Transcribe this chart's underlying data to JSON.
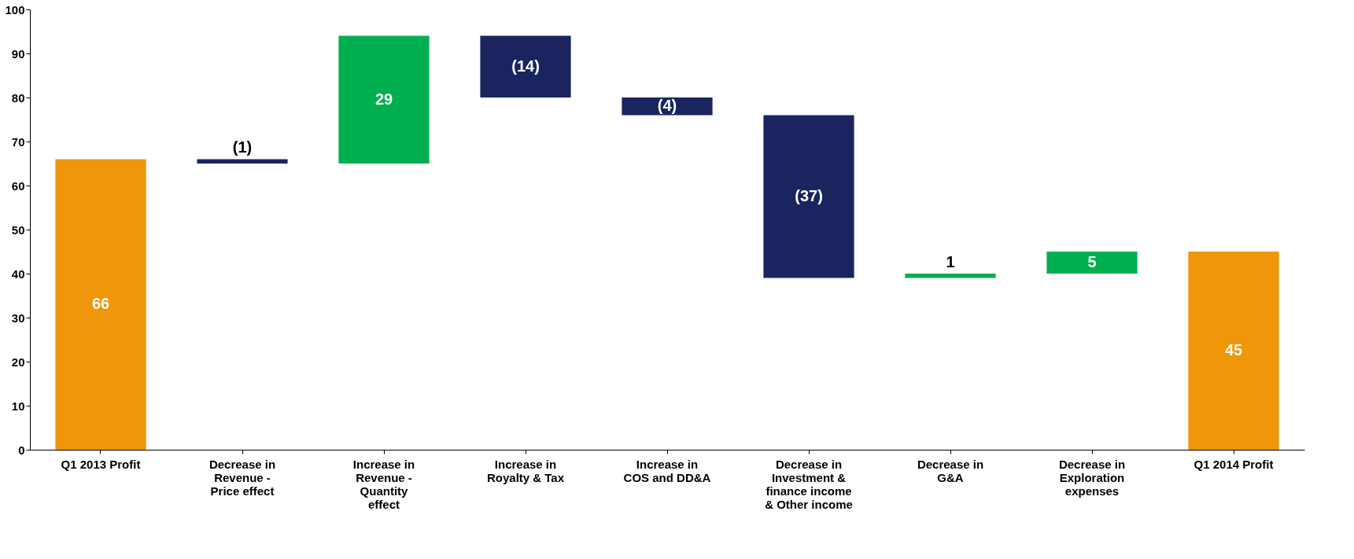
{
  "chart_data": {
    "type": "bar",
    "categories": [
      "Q1 2013 Profit",
      "Decrease in Revenue - Price effect",
      "Increase in Revenue - Quantity effect",
      "Increase in Royalty & Tax",
      "Increase in COS and DD&A",
      "Decrease in Investment & finance income & Other income",
      "Decrease in G&A",
      "Decrease in Exploration expenses",
      "Q1 2014 Profit"
    ],
    "values": [
      66,
      -1,
      29,
      -14,
      -4,
      -37,
      1,
      5,
      45
    ],
    "base": [
      0,
      66,
      65,
      94,
      80,
      76,
      39,
      40,
      0
    ],
    "colors": [
      "#f0960a",
      "#1a2560",
      "#00b050",
      "#1a2560",
      "#1a2560",
      "#1a2560",
      "#00b050",
      "#00b050",
      "#f0960a"
    ],
    "value_labels": [
      "66",
      "(1)",
      "29",
      "(14)",
      "(4)",
      "(37)",
      "1",
      "5",
      "45"
    ],
    "ylim": [
      0,
      100
    ],
    "yticks": [
      0,
      10,
      20,
      30,
      40,
      50,
      60,
      70,
      80,
      90,
      100
    ],
    "grid": false
  }
}
